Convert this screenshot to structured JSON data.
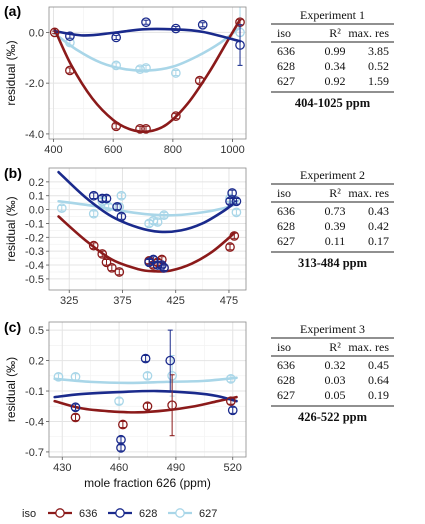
{
  "colors": {
    "636": "#8b1a1a",
    "628": "#1a2a8c",
    "627": "#a9d6e8"
  },
  "legend": {
    "title": "iso",
    "entries": [
      "636",
      "628",
      "627"
    ]
  },
  "shared_ylabel": "residual (‰)",
  "chart_data": [
    {
      "type": "scatter",
      "panel_label": "(a)",
      "xlabel": "",
      "ylabel": "residual (‰)",
      "xlim": [
        385,
        1045
      ],
      "ylim": [
        -4.2,
        1.0
      ],
      "xticks": [
        400,
        600,
        800,
        1000
      ],
      "yticks": [
        0.0,
        -2.0,
        -4.0
      ],
      "ytick_labels": [
        "0.0",
        "-2.0",
        "-4.0"
      ],
      "grid": true,
      "series": [
        {
          "iso": "636",
          "points": [
            [
              404,
              0.0,
              0.05
            ],
            [
              455,
              -1.5,
              0.1
            ],
            [
              610,
              -3.7,
              0.1
            ],
            [
              690,
              -3.8,
              0.1
            ],
            [
              710,
              -3.8,
              0.1
            ],
            [
              810,
              -3.3,
              0.1
            ],
            [
              890,
              -1.9,
              0.1
            ],
            [
              1025,
              0.4,
              0.1
            ]
          ],
          "fit": [
            [
              404,
              0.12
            ],
            [
              460,
              -1.3
            ],
            [
              530,
              -2.6
            ],
            [
              600,
              -3.45
            ],
            [
              660,
              -3.83
            ],
            [
              720,
              -3.9
            ],
            [
              780,
              -3.62
            ],
            [
              850,
              -2.8
            ],
            [
              920,
              -1.6
            ],
            [
              980,
              -0.4
            ],
            [
              1025,
              0.5
            ]
          ]
        },
        {
          "iso": "628",
          "points": [
            [
              455,
              -0.15,
              0.08
            ],
            [
              610,
              -0.2,
              0.08
            ],
            [
              710,
              0.4,
              0.08
            ],
            [
              810,
              0.15,
              0.08
            ],
            [
              900,
              0.3,
              0.08
            ],
            [
              1025,
              -0.5,
              0.8
            ]
          ],
          "fit": [
            [
              404,
              0.05
            ],
            [
              500,
              -0.12
            ],
            [
              600,
              -0.02
            ],
            [
              700,
              0.12
            ],
            [
              800,
              0.12
            ],
            [
              900,
              0.02
            ],
            [
              1025,
              -0.35
            ]
          ]
        },
        {
          "iso": "627",
          "points": [
            [
              455,
              -0.4,
              0.1
            ],
            [
              610,
              -1.3,
              0.1
            ],
            [
              690,
              -1.45,
              0.1
            ],
            [
              710,
              -1.4,
              0.1
            ],
            [
              810,
              -1.6,
              0.1
            ],
            [
              1025,
              0.0,
              1.3
            ]
          ],
          "fit": [
            [
              404,
              -0.05
            ],
            [
              480,
              -0.7
            ],
            [
              560,
              -1.2
            ],
            [
              640,
              -1.45
            ],
            [
              720,
              -1.5
            ],
            [
              800,
              -1.35
            ],
            [
              880,
              -0.95
            ],
            [
              960,
              -0.4
            ],
            [
              1025,
              0.2
            ]
          ]
        }
      ],
      "table": {
        "title": "Experiment 1",
        "header": [
          "iso",
          "R²",
          "max. res"
        ],
        "rows": [
          [
            "636",
            "0.99",
            "3.85"
          ],
          [
            "628",
            "0.34",
            "0.52"
          ],
          [
            "627",
            "0.92",
            "1.59"
          ]
        ],
        "range": "404-1025 ppm"
      }
    },
    {
      "type": "scatter",
      "panel_label": "(b)",
      "xlabel": "",
      "ylabel": "residual (‰)",
      "xlim": [
        306,
        491
      ],
      "ylim": [
        -0.58,
        0.3
      ],
      "xticks": [
        325,
        375,
        425,
        475
      ],
      "yticks": [
        0.2,
        0.1,
        0.0,
        -0.1,
        -0.2,
        -0.3,
        -0.4,
        -0.5
      ],
      "ytick_labels": [
        "0.2",
        "0.1",
        "0.0",
        "-0.1",
        "-0.2",
        "-0.3",
        "-0.4",
        "-0.5"
      ],
      "grid": true,
      "series": [
        {
          "iso": "636",
          "points": [
            [
              348,
              -0.26,
              0.02
            ],
            [
              356,
              -0.32,
              0.02
            ],
            [
              360,
              -0.38,
              0.02
            ],
            [
              365,
              -0.42,
              0.02
            ],
            [
              372,
              -0.45,
              0.02
            ],
            [
              400,
              -0.37,
              0.02
            ],
            [
              404,
              -0.4,
              0.02
            ],
            [
              408,
              -0.38,
              0.02
            ],
            [
              412,
              -0.36,
              0.02
            ],
            [
              414,
              -0.42,
              0.02
            ],
            [
              476,
              -0.27,
              0.02
            ],
            [
              480,
              -0.19,
              0.02
            ]
          ],
          "fit": [
            [
              315,
              -0.05
            ],
            [
              340,
              -0.22
            ],
            [
              365,
              -0.36
            ],
            [
              390,
              -0.43
            ],
            [
              405,
              -0.445
            ],
            [
              420,
              -0.44
            ],
            [
              440,
              -0.39
            ],
            [
              460,
              -0.3
            ],
            [
              480,
              -0.17
            ]
          ]
        },
        {
          "iso": "628",
          "points": [
            [
              348,
              0.1,
              0.02
            ],
            [
              356,
              0.08,
              0.02
            ],
            [
              360,
              0.08,
              0.02
            ],
            [
              370,
              0.02,
              0.02
            ],
            [
              374,
              -0.05,
              0.02
            ],
            [
              400,
              -0.38,
              0.02
            ],
            [
              404,
              -0.36,
              0.02
            ],
            [
              408,
              -0.4,
              0.02
            ],
            [
              412,
              -0.4,
              0.02
            ],
            [
              414,
              -0.42,
              0.02
            ],
            [
              476,
              0.06,
              0.02
            ],
            [
              478,
              0.12,
              0.02
            ],
            [
              482,
              0.06,
              0.02
            ]
          ],
          "fit": [
            [
              315,
              0.27
            ],
            [
              340,
              0.09
            ],
            [
              365,
              -0.05
            ],
            [
              390,
              -0.13
            ],
            [
              410,
              -0.16
            ],
            [
              430,
              -0.15
            ],
            [
              450,
              -0.1
            ],
            [
              470,
              -0.01
            ],
            [
              482,
              0.06
            ]
          ]
        },
        {
          "iso": "627",
          "points": [
            [
              318,
              0.01,
              0.02
            ],
            [
              348,
              -0.03,
              0.02
            ],
            [
              356,
              0.06,
              0.02
            ],
            [
              362,
              0.02,
              0.02
            ],
            [
              372,
              0.02,
              0.02
            ],
            [
              374,
              0.1,
              0.02
            ],
            [
              400,
              -0.1,
              0.02
            ],
            [
              404,
              -0.08,
              0.02
            ],
            [
              408,
              -0.09,
              0.02
            ],
            [
              414,
              -0.04,
              0.02
            ],
            [
              476,
              0.08,
              0.02
            ],
            [
              480,
              0.07,
              0.02
            ],
            [
              482,
              -0.02,
              0.02
            ]
          ],
          "fit": [
            [
              315,
              0.06
            ],
            [
              345,
              0.03
            ],
            [
              375,
              -0.01
            ],
            [
              400,
              -0.035
            ],
            [
              425,
              -0.04
            ],
            [
              450,
              -0.02
            ],
            [
              470,
              0.01
            ],
            [
              482,
              0.04
            ]
          ]
        }
      ],
      "table": {
        "title": "Experiment 2",
        "header": [
          "iso",
          "R²",
          "max. res"
        ],
        "rows": [
          [
            "636",
            "0.73",
            "0.43"
          ],
          [
            "628",
            "0.39",
            "0.42"
          ],
          [
            "627",
            "0.11",
            "0.17"
          ]
        ],
        "range": "313-484 ppm"
      }
    },
    {
      "type": "scatter",
      "panel_label": "(c)",
      "xlabel": "mole fraction 626 (ppm)",
      "ylabel": "residual (‰)",
      "xlim": [
        423,
        527
      ],
      "ylim": [
        -0.75,
        0.58
      ],
      "xticks": [
        430,
        460,
        490,
        520
      ],
      "yticks": [
        0.5,
        0.2,
        -0.1,
        -0.4,
        -0.7
      ],
      "ytick_labels": [
        "0.5",
        "0.2",
        "-0.1",
        "-0.4",
        "-0.7"
      ],
      "grid": true,
      "series": [
        {
          "iso": "636",
          "points": [
            [
              437,
              -0.36,
              0.03
            ],
            [
              462,
              -0.43,
              0.03
            ],
            [
              475,
              -0.25,
              0.03
            ],
            [
              488,
              -0.24,
              0.3
            ],
            [
              519,
              -0.2,
              0.03
            ]
          ],
          "fit": [
            [
              426,
              -0.2
            ],
            [
              440,
              -0.27
            ],
            [
              455,
              -0.3
            ],
            [
              470,
              -0.31
            ],
            [
              485,
              -0.29
            ],
            [
              500,
              -0.25
            ],
            [
              512,
              -0.2
            ],
            [
              522,
              -0.16
            ]
          ]
        },
        {
          "iso": "628",
          "points": [
            [
              437,
              -0.26,
              0.03
            ],
            [
              461,
              -0.58,
              0.03
            ],
            [
              461,
              -0.66,
              0.03
            ],
            [
              474,
              0.22,
              0.03
            ],
            [
              487,
              0.2,
              0.3
            ],
            [
              520,
              -0.29,
              0.03
            ]
          ],
          "fit": [
            [
              426,
              -0.16
            ],
            [
              440,
              -0.13
            ],
            [
              460,
              -0.11
            ],
            [
              480,
              -0.1
            ],
            [
              500,
              -0.12
            ],
            [
              512,
              -0.15
            ],
            [
              522,
              -0.2
            ]
          ]
        },
        {
          "iso": "627",
          "points": [
            [
              428,
              0.04,
              0.03
            ],
            [
              437,
              0.04,
              0.03
            ],
            [
              460,
              -0.2,
              0.03
            ],
            [
              475,
              0.05,
              0.03
            ],
            [
              488,
              0.05,
              0.2
            ],
            [
              519,
              0.02,
              0.03
            ]
          ],
          "fit": [
            [
              426,
              0.02
            ],
            [
              445,
              -0.01
            ],
            [
              465,
              -0.02
            ],
            [
              485,
              -0.01
            ],
            [
              505,
              0.0
            ],
            [
              522,
              0.03
            ]
          ]
        }
      ],
      "table": {
        "title": "Experiment 3",
        "header": [
          "iso",
          "R²",
          "max. res"
        ],
        "rows": [
          [
            "636",
            "0.32",
            "0.45"
          ],
          [
            "628",
            "0.03",
            "0.64"
          ],
          [
            "627",
            "0.05",
            "0.19"
          ]
        ],
        "range": "426-522 ppm"
      }
    }
  ]
}
